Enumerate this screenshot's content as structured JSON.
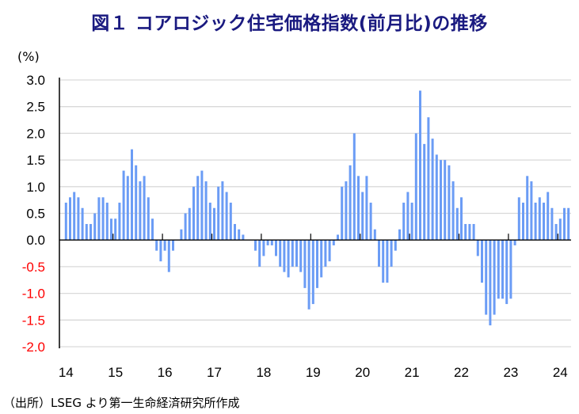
{
  "title": "図１ コアロジック住宅価格指数(前月比)の推移",
  "source": "（出所）LSEG より第一生命経済研究所作成",
  "chart_data": {
    "type": "bar",
    "title": "図１ コアロジック住宅価格指数(前月比)の推移",
    "ylabel": "(%)",
    "xlabel": "",
    "ylim": [
      -2.0,
      3.0
    ],
    "y_ticks": [
      "3.0",
      "2.5",
      "2.0",
      "1.5",
      "1.0",
      "0.5",
      "0.0",
      "-0.5",
      "-1.0",
      "-1.5",
      "-2.0"
    ],
    "x_tick_labels": [
      "14",
      "15",
      "16",
      "17",
      "18",
      "19",
      "20",
      "21",
      "22",
      "23",
      "24"
    ],
    "frequency": "monthly",
    "start": "2014-01",
    "end": "2024-03",
    "grid": true,
    "colors": {
      "bar": "#6b9cf5",
      "negative_tick_label": "#ff0000",
      "title": "#1a1a80",
      "grid": "#d9d9d9"
    },
    "values": [
      0.7,
      0.8,
      0.9,
      0.8,
      0.6,
      0.3,
      0.3,
      0.5,
      0.8,
      0.8,
      0.7,
      0.4,
      0.4,
      0.7,
      1.3,
      1.2,
      1.7,
      1.4,
      1.1,
      1.2,
      0.8,
      0.4,
      -0.2,
      -0.4,
      -0.2,
      -0.6,
      -0.2,
      0.0,
      0.2,
      0.5,
      0.6,
      1.0,
      1.2,
      1.3,
      1.1,
      0.7,
      0.6,
      1.0,
      1.1,
      0.9,
      0.7,
      0.3,
      0.2,
      0.1,
      0.0,
      0.0,
      -0.2,
      -0.5,
      -0.3,
      -0.1,
      -0.1,
      -0.3,
      -0.5,
      -0.6,
      -0.7,
      -0.5,
      -0.5,
      -0.6,
      -0.9,
      -1.3,
      -1.2,
      -0.9,
      -0.7,
      -0.5,
      -0.4,
      -0.1,
      0.1,
      1.0,
      1.1,
      1.4,
      2.0,
      1.2,
      0.9,
      1.2,
      0.7,
      0.2,
      -0.5,
      -0.8,
      -0.8,
      -0.5,
      -0.2,
      0.2,
      0.7,
      0.9,
      0.7,
      2.0,
      2.8,
      1.8,
      2.3,
      1.9,
      1.6,
      1.5,
      1.5,
      1.4,
      1.1,
      0.6,
      0.8,
      0.3,
      0.3,
      0.3,
      -0.3,
      -0.8,
      -1.4,
      -1.6,
      -1.4,
      -1.1,
      -1.1,
      -1.2,
      -1.1,
      -0.1,
      0.8,
      0.7,
      1.2,
      1.1,
      0.7,
      0.8,
      0.7,
      0.9,
      0.6,
      0.3,
      0.4,
      0.6,
      0.6
    ]
  }
}
